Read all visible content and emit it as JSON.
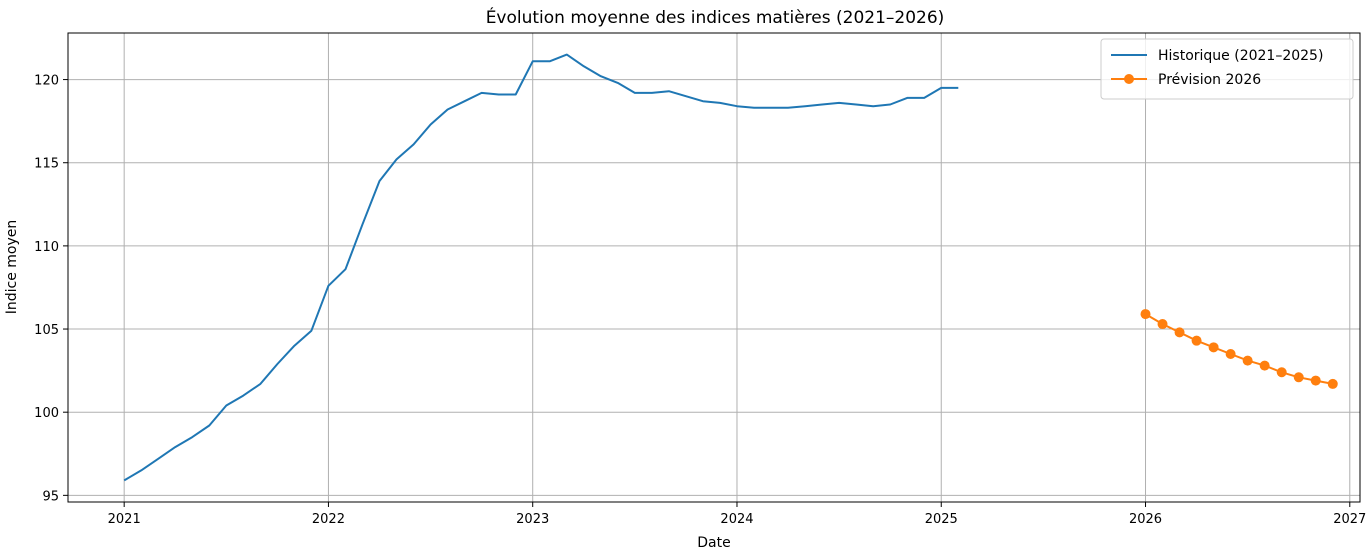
{
  "chart_data": {
    "type": "line",
    "title": "Évolution moyenne des indices matières (2021–2026)",
    "xlabel": "Date",
    "ylabel": "Indice moyen",
    "xlim": [
      2020.725,
      2027.05
    ],
    "ylim": [
      94.6,
      122.8
    ],
    "x_ticks": [
      2021,
      2022,
      2023,
      2024,
      2025,
      2026,
      2027
    ],
    "x_tick_labels": [
      "2021",
      "2022",
      "2023",
      "2024",
      "2025",
      "2026",
      "2027"
    ],
    "y_ticks": [
      95,
      100,
      105,
      110,
      115,
      120
    ],
    "y_tick_labels": [
      "95",
      "100",
      "105",
      "110",
      "115",
      "120"
    ],
    "grid": true,
    "legend_position": "top-right",
    "series": [
      {
        "name": "Historique (2021–2025)",
        "color": "#1f77b4",
        "marker": "none",
        "x": [
          "2021-01",
          "2021-02",
          "2021-03",
          "2021-04",
          "2021-05",
          "2021-06",
          "2021-07",
          "2021-08",
          "2021-09",
          "2021-10",
          "2021-11",
          "2021-12",
          "2022-01",
          "2022-02",
          "2022-03",
          "2022-04",
          "2022-05",
          "2022-06",
          "2022-07",
          "2022-08",
          "2022-09",
          "2022-10",
          "2022-11",
          "2022-12",
          "2023-01",
          "2023-02",
          "2023-03",
          "2023-04",
          "2023-05",
          "2023-06",
          "2023-07",
          "2023-08",
          "2023-09",
          "2023-10",
          "2023-11",
          "2023-12",
          "2024-01",
          "2024-02",
          "2024-03",
          "2024-04",
          "2024-05",
          "2024-06",
          "2024-07",
          "2024-08",
          "2024-09",
          "2024-10",
          "2024-11",
          "2024-12",
          "2025-01",
          "2025-02"
        ],
        "values": [
          95.9,
          96.5,
          97.2,
          97.9,
          98.5,
          99.2,
          100.4,
          101.0,
          101.7,
          102.9,
          104.0,
          104.9,
          107.6,
          108.6,
          111.3,
          113.9,
          115.2,
          116.1,
          117.3,
          118.2,
          118.7,
          119.2,
          119.1,
          119.1,
          121.1,
          121.1,
          121.5,
          120.8,
          120.2,
          119.8,
          119.2,
          119.2,
          119.3,
          119.0,
          118.7,
          118.6,
          118.4,
          118.3,
          118.3,
          118.3,
          118.4,
          118.5,
          118.6,
          118.5,
          118.4,
          118.5,
          118.9,
          118.9,
          119.5,
          119.5
        ]
      },
      {
        "name": "Prévision 2026",
        "color": "#ff7f0e",
        "marker": "circle",
        "x": [
          "2026-01",
          "2026-02",
          "2026-03",
          "2026-04",
          "2026-05",
          "2026-06",
          "2026-07",
          "2026-08",
          "2026-09",
          "2026-10",
          "2026-11",
          "2026-12"
        ],
        "values": [
          105.9,
          105.3,
          104.8,
          104.3,
          103.9,
          103.5,
          103.1,
          102.8,
          102.4,
          102.1,
          101.9,
          101.7
        ]
      }
    ]
  }
}
